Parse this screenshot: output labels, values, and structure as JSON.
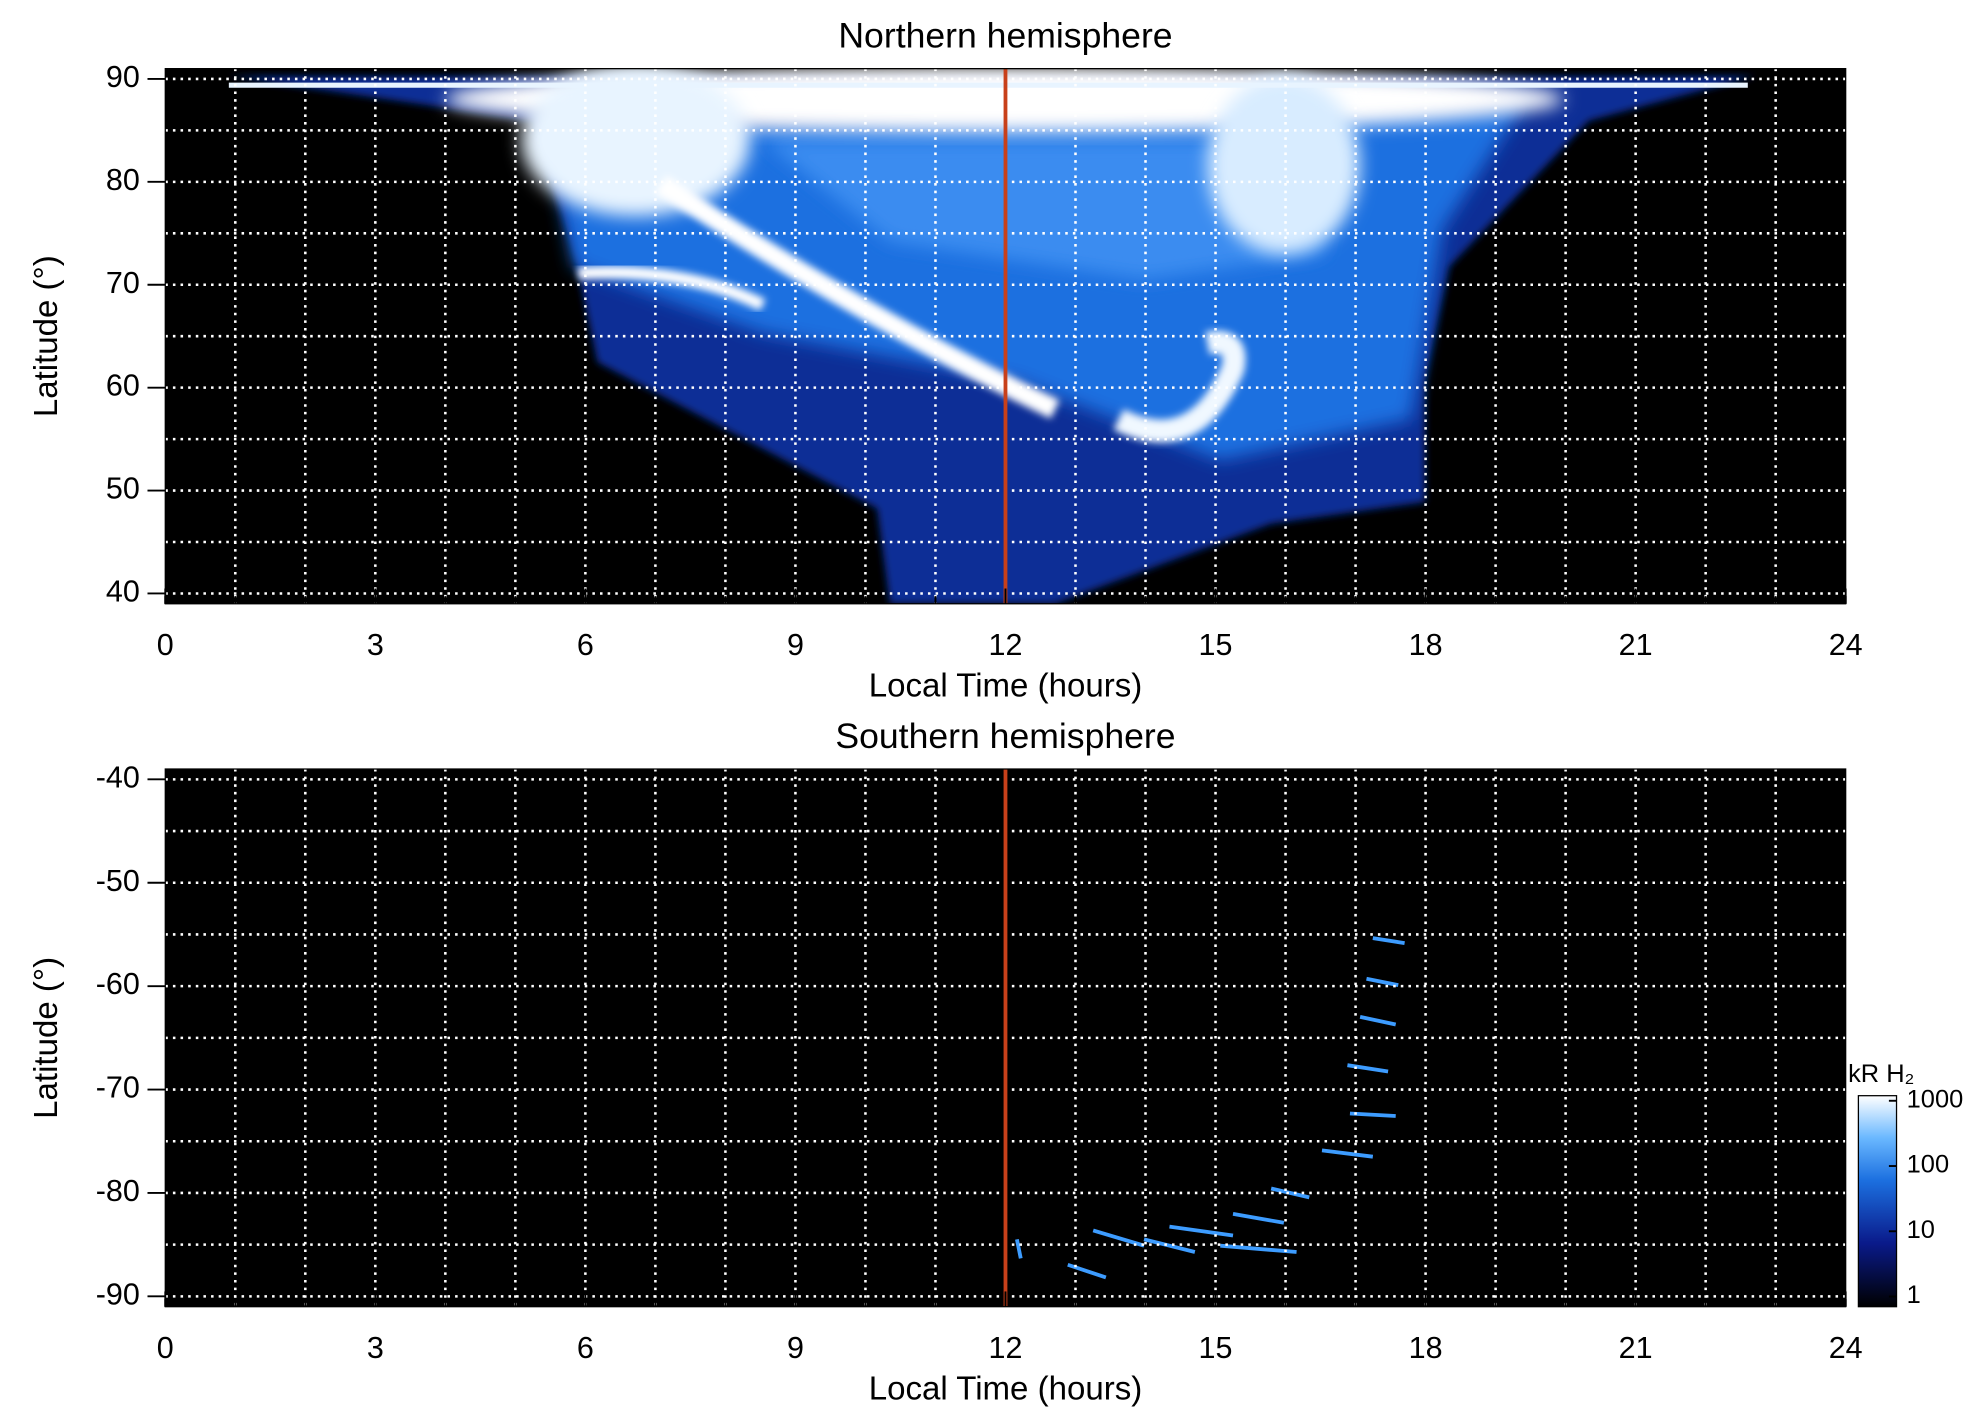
{
  "chart_data": [
    {
      "type": "heatmap",
      "title": "Northern hemisphere",
      "x_label": "Local Time (hours)",
      "y_label": "Latitude (°)",
      "xlim": [
        0,
        24
      ],
      "xticks": [
        0,
        3,
        6,
        9,
        12,
        15,
        18,
        21,
        24
      ],
      "xgrid_step": 1,
      "ylim": [
        39,
        91
      ],
      "yticks": [
        40,
        50,
        60,
        70,
        80,
        90
      ],
      "ygrid_step": 5,
      "grid": true,
      "vline": 12,
      "vline_color": "#c8401a",
      "hemisphere": "north"
    },
    {
      "type": "heatmap",
      "title": "Southern hemisphere",
      "x_label": "Local Time (hours)",
      "y_label": "Latitude (°)",
      "xlim": [
        0,
        24
      ],
      "xticks": [
        0,
        3,
        6,
        9,
        12,
        15,
        18,
        21,
        24
      ],
      "xgrid_step": 1,
      "ylim": [
        -91,
        -39
      ],
      "yticks": [
        -40,
        -50,
        -60,
        -70,
        -80,
        -90
      ],
      "ygrid_step": 5,
      "grid": true,
      "vline": 12,
      "vline_color": "#c8401a",
      "hemisphere": "south",
      "colorbar": {
        "label": "kR H₂",
        "scale": "log",
        "lim": [
          1,
          1000
        ],
        "ticks": [
          1,
          10,
          100,
          1000
        ]
      }
    }
  ]
}
